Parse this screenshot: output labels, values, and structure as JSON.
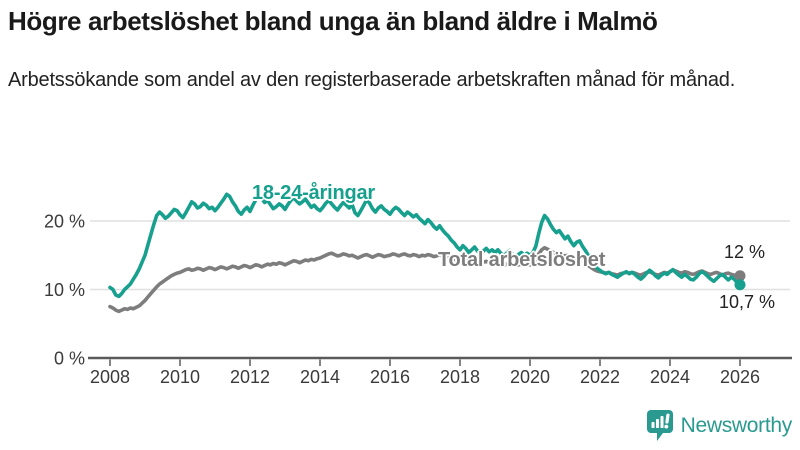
{
  "header": {
    "title": "Högre arbetslöshet bland unga än bland äldre i Malmö",
    "subtitle": "Arbetssökande som andel av den registerbaserade arbetskraften månad för månad."
  },
  "colors": {
    "teal": "#17a08e",
    "gray": "#7d7d7d",
    "text": "#1a1a1a",
    "muted": "#3b3b3b",
    "grid": "#e0e0e0",
    "axis": "#5a5a5a",
    "brand": "#2a9a90"
  },
  "footer": {
    "brand": "Newsworthy"
  },
  "chart_data": {
    "type": "line",
    "unit": "%",
    "x_unit": "month",
    "x_start": "2008-01",
    "x_end": "2026-01",
    "x_tick_years": [
      2008,
      2010,
      2012,
      2014,
      2016,
      2018,
      2020,
      2022,
      2024,
      2026
    ],
    "y_tick_values": [
      20,
      10,
      0
    ],
    "y_tick_labels": [
      "20 %",
      "10 %",
      "0 %"
    ],
    "y_gridlines": [
      20,
      10
    ],
    "ylim": [
      0,
      27
    ],
    "grid": true,
    "legend": "inline-labels",
    "series": [
      {
        "id": "young",
        "name": "18-24-åringar",
        "color": "#17a08e",
        "end_label": "10,7 %",
        "end_value": 10.7,
        "values": [
          10.3,
          10.0,
          9.2,
          9.0,
          9.4,
          10.0,
          10.4,
          10.8,
          11.5,
          12.2,
          13.0,
          14.0,
          15.0,
          16.5,
          18.0,
          19.5,
          20.8,
          21.3,
          20.9,
          20.4,
          20.7,
          21.2,
          21.7,
          21.5,
          20.9,
          20.5,
          21.2,
          22.0,
          22.8,
          22.5,
          21.9,
          22.1,
          22.6,
          22.3,
          21.8,
          22.0,
          21.5,
          22.0,
          22.6,
          23.2,
          23.9,
          23.6,
          22.8,
          22.2,
          21.4,
          21.0,
          21.6,
          22.0,
          21.4,
          22.3,
          23.1,
          23.6,
          23.3,
          22.7,
          23.0,
          22.4,
          21.8,
          22.1,
          22.5,
          22.2,
          21.7,
          22.4,
          23.0,
          23.4,
          22.9,
          22.5,
          22.8,
          23.2,
          22.6,
          22.0,
          22.3,
          21.8,
          21.5,
          22.0,
          22.6,
          23.0,
          22.5,
          22.0,
          21.6,
          22.2,
          22.7,
          22.3,
          21.9,
          22.4,
          21.2,
          20.8,
          21.5,
          22.3,
          23.1,
          22.6,
          21.8,
          21.3,
          21.9,
          22.2,
          21.7,
          21.4,
          21.0,
          21.6,
          22.0,
          21.7,
          21.2,
          20.8,
          21.3,
          21.0,
          20.6,
          20.9,
          20.4,
          20.0,
          19.6,
          20.2,
          19.8,
          19.2,
          18.8,
          19.3,
          18.7,
          18.2,
          17.8,
          17.2,
          16.8,
          16.2,
          15.8,
          16.4,
          16.0,
          15.4,
          15.8,
          16.2,
          15.6,
          15.2,
          15.6,
          16.0,
          15.5,
          15.8,
          15.4,
          15.8,
          15.3,
          14.9,
          15.3,
          15.7,
          15.2,
          14.8,
          15.1,
          15.4,
          15.0,
          15.3,
          15.0,
          15.4,
          16.3,
          18.2,
          19.8,
          20.8,
          20.3,
          19.5,
          18.8,
          18.3,
          18.6,
          18.0,
          17.4,
          17.8,
          17.0,
          16.4,
          16.9,
          17.1,
          16.3,
          15.7,
          15.0,
          14.3,
          13.7,
          13.1,
          12.8,
          12.5,
          12.3,
          12.5,
          12.2,
          12.0,
          11.8,
          12.1,
          12.4,
          12.6,
          12.3,
          12.5,
          12.2,
          11.8,
          11.5,
          11.9,
          12.4,
          12.8,
          12.5,
          12.0,
          11.7,
          12.1,
          12.4,
          12.2,
          12.6,
          12.9,
          12.5,
          12.1,
          11.8,
          12.2,
          11.9,
          11.5,
          11.4,
          11.8,
          12.3,
          12.6,
          12.3,
          11.9,
          11.5,
          11.2,
          11.6,
          12.0,
          12.2,
          11.8,
          11.4,
          11.8,
          11.5,
          11.0,
          10.7
        ]
      },
      {
        "id": "total",
        "name": "Total arbetslöshet",
        "color": "#7d7d7d",
        "end_label": "12 %",
        "end_value": 12.0,
        "values": [
          7.5,
          7.3,
          7.0,
          6.8,
          7.0,
          7.2,
          7.1,
          7.3,
          7.2,
          7.4,
          7.6,
          8.0,
          8.4,
          8.9,
          9.4,
          9.9,
          10.4,
          10.8,
          11.1,
          11.4,
          11.7,
          12.0,
          12.2,
          12.4,
          12.5,
          12.7,
          12.9,
          13.0,
          12.8,
          12.9,
          13.1,
          13.0,
          12.8,
          13.0,
          13.2,
          13.1,
          12.9,
          13.1,
          13.3,
          13.2,
          13.0,
          13.2,
          13.4,
          13.3,
          13.1,
          13.3,
          13.5,
          13.4,
          13.2,
          13.4,
          13.6,
          13.5,
          13.3,
          13.5,
          13.7,
          13.6,
          13.8,
          13.7,
          13.9,
          13.8,
          13.6,
          13.8,
          14.0,
          14.2,
          14.1,
          13.9,
          14.1,
          14.3,
          14.2,
          14.4,
          14.3,
          14.5,
          14.6,
          14.8,
          15.0,
          15.2,
          15.3,
          15.1,
          14.9,
          15.0,
          15.2,
          15.1,
          14.9,
          15.0,
          14.8,
          14.6,
          14.8,
          15.0,
          15.1,
          14.9,
          14.7,
          14.9,
          15.1,
          15.0,
          14.8,
          14.9,
          15.0,
          15.2,
          15.1,
          14.9,
          15.1,
          15.2,
          15.0,
          14.9,
          15.1,
          15.0,
          14.8,
          15.0,
          14.9,
          15.1,
          15.0,
          14.8,
          14.9,
          15.1,
          14.9,
          14.7,
          14.8,
          14.6,
          14.4,
          14.5,
          14.3,
          14.4,
          14.2,
          14.0,
          14.1,
          14.3,
          14.1,
          13.9,
          14.0,
          14.1,
          13.9,
          14.0,
          13.8,
          13.9,
          13.7,
          13.6,
          13.7,
          13.9,
          13.7,
          13.5,
          13.6,
          13.7,
          13.6,
          13.7,
          13.6,
          13.8,
          14.4,
          15.2,
          15.8,
          16.1,
          15.9,
          15.6,
          15.4,
          15.2,
          15.3,
          15.1,
          14.9,
          15.0,
          14.7,
          14.4,
          14.2,
          14.4,
          14.1,
          13.8,
          13.5,
          13.2,
          12.9,
          12.7,
          12.6,
          12.5,
          12.4,
          12.5,
          12.3,
          12.2,
          12.1,
          12.3,
          12.4,
          12.5,
          12.4,
          12.5,
          12.4,
          12.2,
          12.1,
          12.3,
          12.5,
          12.6,
          12.4,
          12.2,
          12.1,
          12.3,
          12.5,
          12.4,
          12.6,
          12.8,
          12.7,
          12.5,
          12.4,
          12.6,
          12.5,
          12.3,
          12.2,
          12.4,
          12.6,
          12.7,
          12.5,
          12.3,
          12.2,
          12.4,
          12.5,
          12.3,
          12.1,
          12.3,
          12.4,
          12.2,
          12.1,
          12.0,
          12.0
        ]
      }
    ]
  }
}
